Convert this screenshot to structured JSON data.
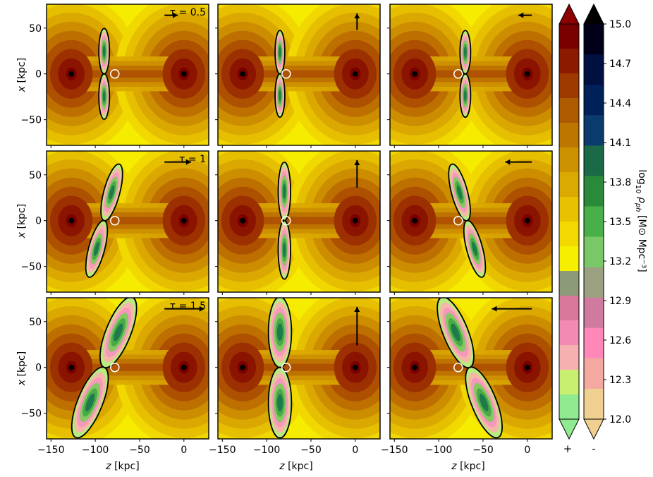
{
  "chart_data": {
    "type": "contour-grid",
    "grid": {
      "rows": 3,
      "cols": 3
    },
    "xlim": [
      -155,
      28
    ],
    "ylim": [
      -78,
      76
    ],
    "xticks": [
      -150,
      -100,
      -50,
      0
    ],
    "yticks": [
      -50,
      0,
      50
    ],
    "xlabel": "z [kpc]",
    "xlabel_var": "z",
    "xlabel_unit": "[kpc]",
    "ylabel": "x [kpc]",
    "ylabel_var": "x",
    "ylabel_unit": "[kpc]",
    "rows": [
      {
        "tau_label": "τ = 0.5",
        "arrow_length_kpc": 15
      },
      {
        "tau_label": "τ = 1",
        "arrow_length_kpc": 30
      },
      {
        "tau_label": "τ = 1.5",
        "arrow_length_kpc": 45
      }
    ],
    "columns": [
      {
        "arrow_direction": "right"
      },
      {
        "arrow_direction": "up"
      },
      {
        "arrow_direction": "left"
      }
    ],
    "halo_centers_kpc": [
      [
        -127,
        0
      ],
      [
        0,
        0
      ]
    ],
    "observer_markers_kpc": [
      [
        -78,
        0
      ],
      [
        -78,
        0
      ],
      [
        -78,
        0
      ],
      [
        -78,
        0
      ],
      [
        -78,
        0
      ],
      [
        -78,
        0
      ],
      [
        -78,
        0
      ],
      [
        -78,
        0
      ],
      [
        -78,
        0
      ]
    ],
    "lobes": [
      {
        "center_z": -90,
        "center_x": 0,
        "length": 45,
        "width": 6,
        "tilt_deg": 0
      },
      {
        "center_z": -85,
        "center_x": 0,
        "length": 43,
        "width": 5.5,
        "tilt_deg": 0
      },
      {
        "center_z": -70,
        "center_x": 0,
        "length": 43,
        "width": 6,
        "tilt_deg": 0
      },
      {
        "center_z": -90,
        "center_x": 0,
        "length": 58,
        "width": 9,
        "tilt_deg": 15
      },
      {
        "center_z": -80,
        "center_x": 0,
        "length": 58,
        "width": 7,
        "tilt_deg": 0
      },
      {
        "center_z": -68,
        "center_x": 0,
        "length": 58,
        "width": 9,
        "tilt_deg": -15
      },
      {
        "center_z": -90,
        "center_x": 0,
        "length": 75,
        "width": 14,
        "tilt_deg": 22
      },
      {
        "center_z": -85,
        "center_x": 0,
        "length": 70,
        "width": 13,
        "tilt_deg": 0
      },
      {
        "center_z": -65,
        "center_x": 0,
        "length": 75,
        "width": 14,
        "tilt_deg": -22
      }
    ],
    "colorbar": {
      "label": "log10 ρph [M⊙ Mpc⁻³]",
      "label_main": "log",
      "label_sub": "10",
      "label_rho": "ρ",
      "label_rho_sub": "ph",
      "label_unit": "[M⊙ Mpc⁻³]",
      "ticks": [
        "15.0",
        "14.7",
        "14.4",
        "14.1",
        "13.8",
        "13.5",
        "13.2",
        "12.9",
        "12.6",
        "12.3",
        "12.0"
      ],
      "positive_label": "+",
      "negative_label": "-",
      "positive_colors": [
        "#7a0000",
        "#8c1a00",
        "#9e3a00",
        "#ad5a00",
        "#bd7600",
        "#cc9200",
        "#daaa00",
        "#e8c200",
        "#f3d900",
        "#f7ef00",
        "#8c9a7a",
        "#d9789a",
        "#f28ab4",
        "#f7b0b0",
        "#c8ef70",
        "#90ea90"
      ],
      "negative_colors": [
        "#000019",
        "#001040",
        "#00205a",
        "#0a3a6e",
        "#1a6a48",
        "#2a8a3a",
        "#48b048",
        "#78c868",
        "#9aa080",
        "#d07aa0",
        "#ff88b8",
        "#f4a8a0",
        "#f0d090"
      ],
      "levels": [
        12.0,
        12.3,
        12.6,
        12.9,
        13.2,
        13.5,
        13.8,
        14.1,
        14.4,
        14.7,
        15.0
      ]
    }
  }
}
